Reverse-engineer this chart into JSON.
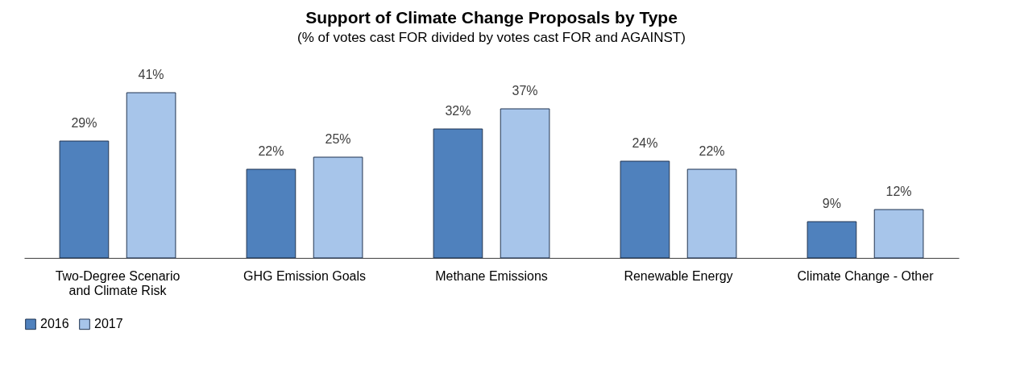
{
  "chart_data": {
    "type": "bar",
    "title": "Support of Climate Change Proposals by Type",
    "subtitle": "(% of votes cast FOR divided by votes cast FOR and AGAINST)",
    "categories": [
      "Two-Degree Scenario and Climate Risk",
      "GHG Emission Goals",
      "Methane Emissions",
      "Renewable Energy",
      "Climate Change - Other"
    ],
    "series": [
      {
        "name": "2016",
        "color": "#4f81bd",
        "values": [
          29,
          22,
          32,
          24,
          9
        ],
        "value_labels": [
          "29%",
          "22%",
          "32%",
          "24%",
          "9%"
        ]
      },
      {
        "name": "2017",
        "color": "#a7c5ea",
        "values": [
          41,
          25,
          37,
          22,
          12
        ],
        "value_labels": [
          "41%",
          "25%",
          "37%",
          "22%",
          "12%"
        ]
      }
    ],
    "legend": "bottom",
    "grid": false
  }
}
